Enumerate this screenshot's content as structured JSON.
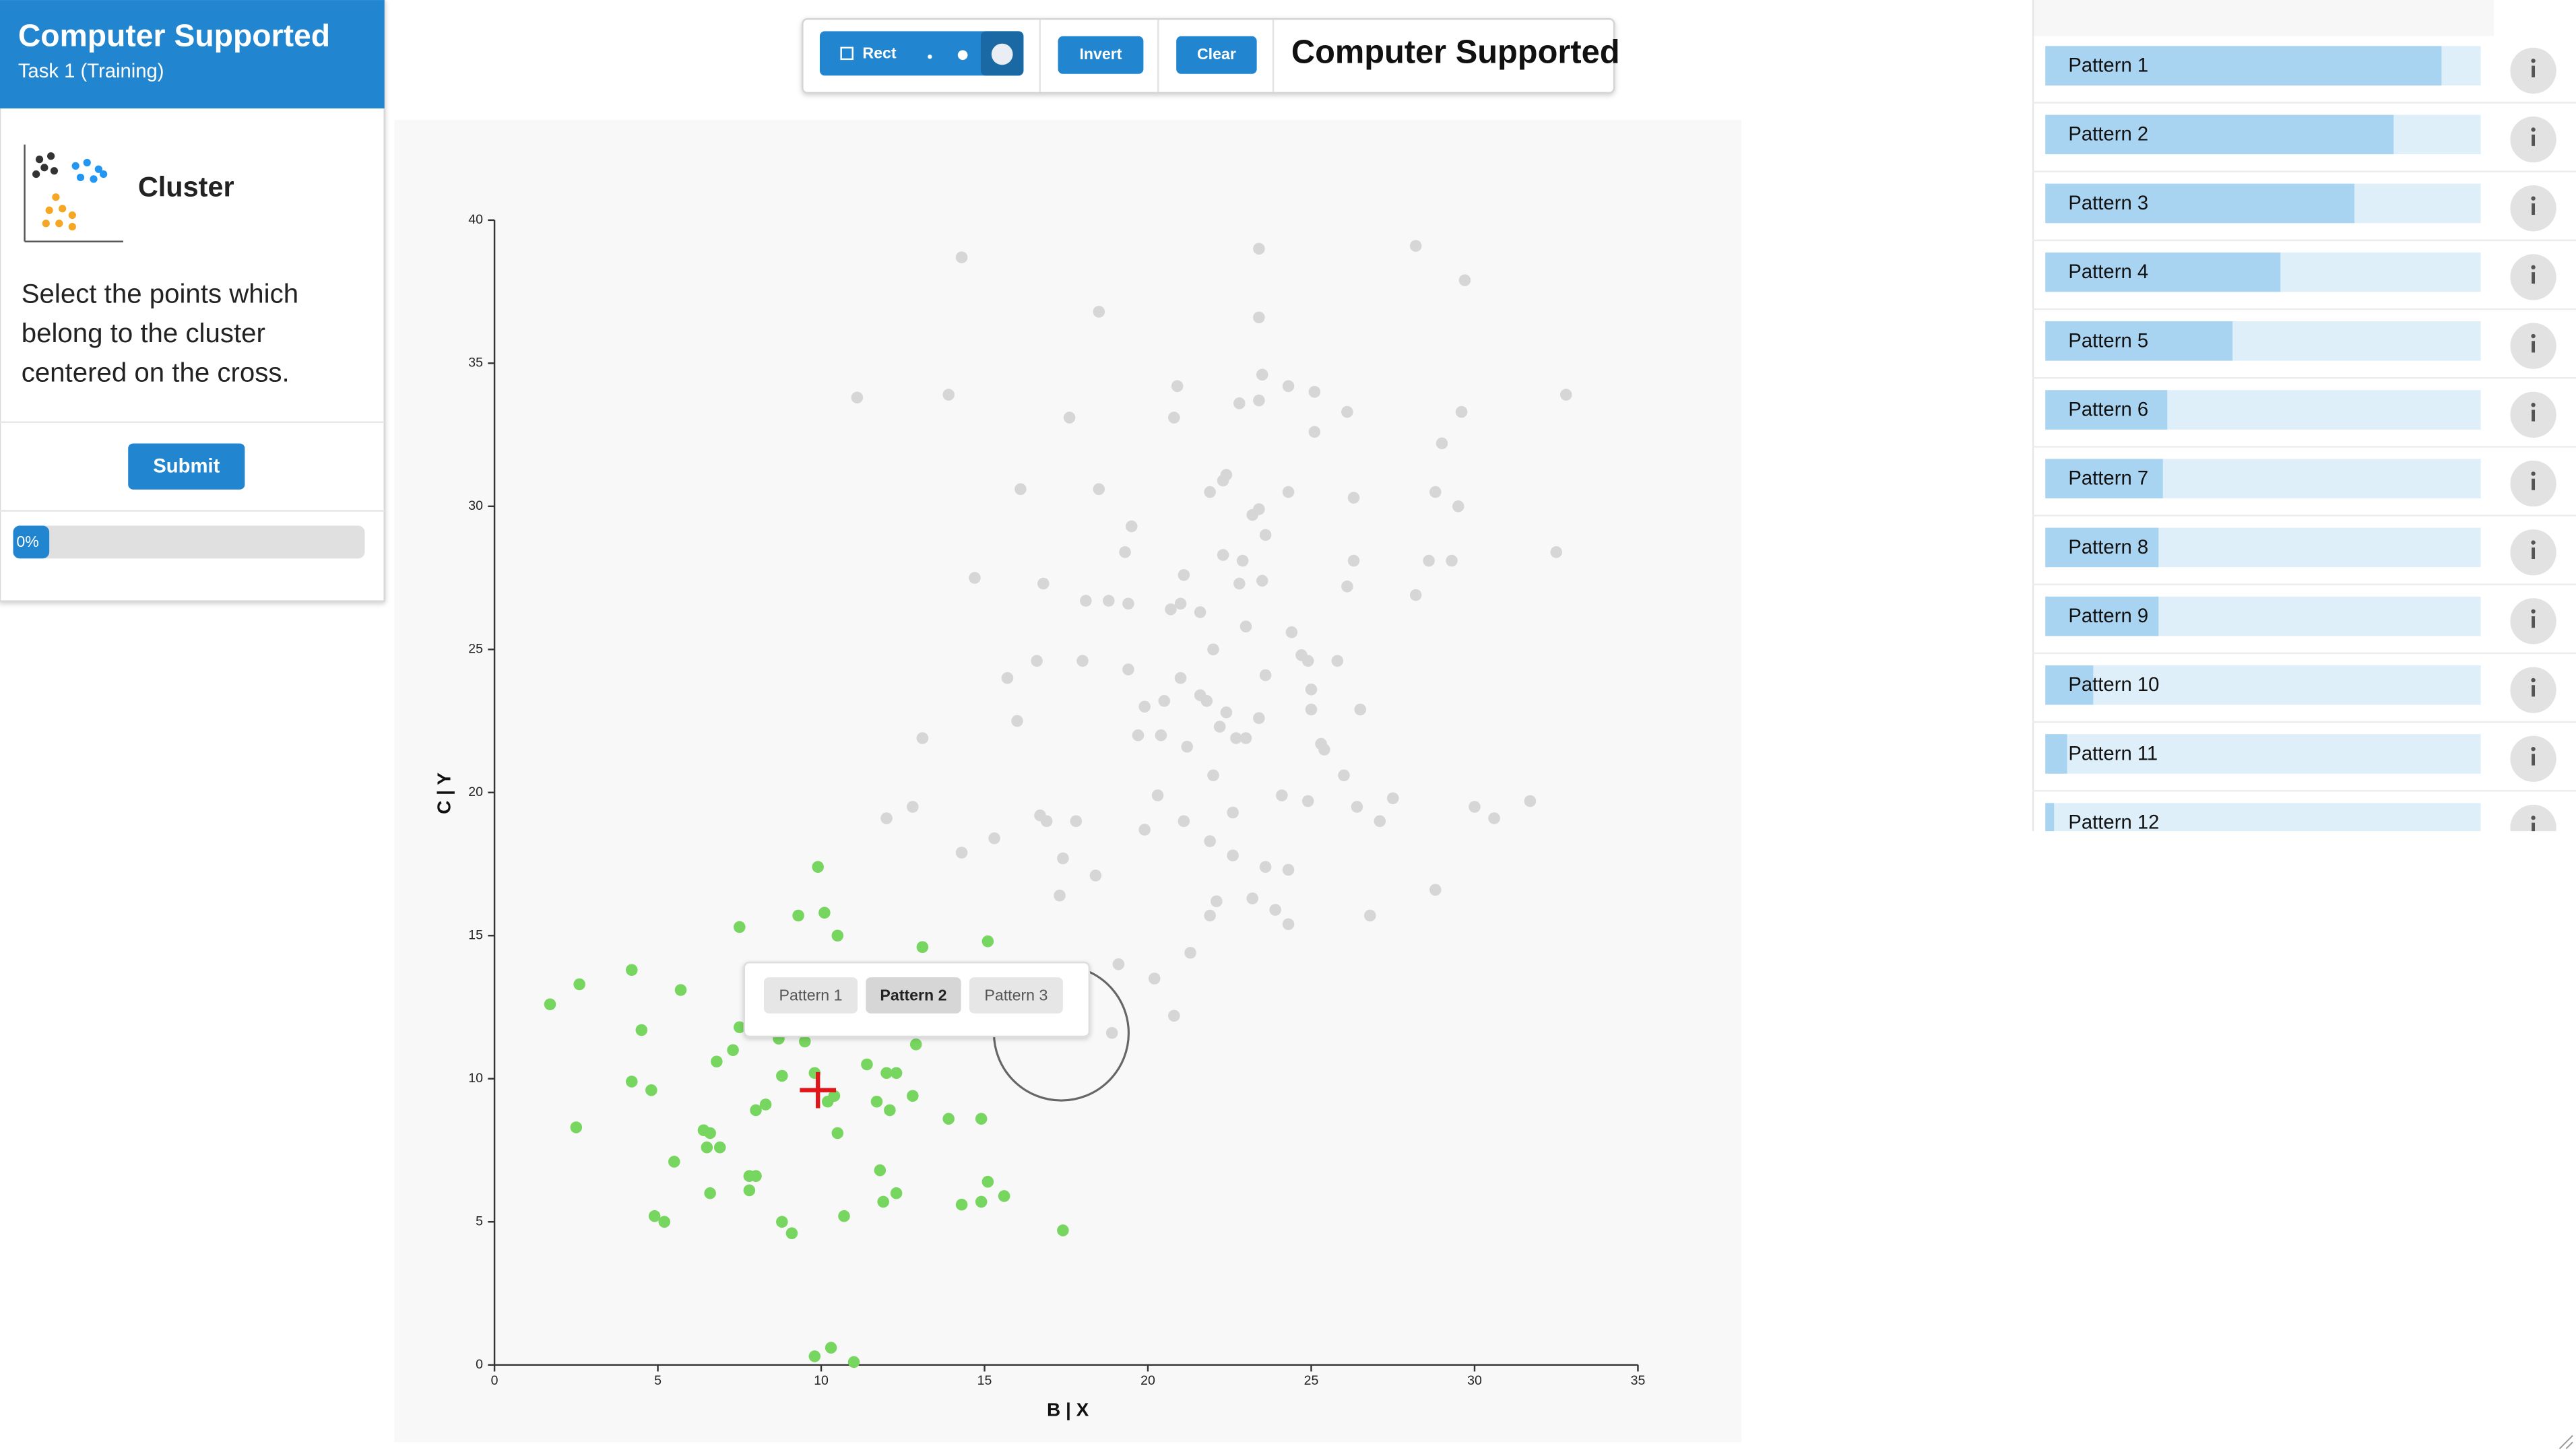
{
  "sidebar": {
    "title": "Computer Supported",
    "subtitle": "Task 1 (Training)",
    "task_name": "Cluster",
    "instructions": [
      "Select the points which",
      "belong to the cluster",
      "centered on the cross."
    ],
    "submit": "Submit",
    "progress": {
      "value": 0,
      "label": "0%"
    }
  },
  "toolbar": {
    "brush": "Rect",
    "invert": "Invert",
    "clear": "Clear",
    "title": "Computer Supported"
  },
  "scatter": {
    "xlabel": "B | X",
    "ylabel": "C | Y",
    "xlim": [
      0,
      35
    ],
    "ylim": [
      0,
      40
    ],
    "xticks": [
      0,
      5,
      10,
      15,
      20,
      25,
      30,
      35
    ],
    "yticks": [
      0,
      5,
      10,
      15,
      20,
      25,
      30,
      35,
      40
    ],
    "groups": [
      {
        "color": "#d6d6d6",
        "x": [
          14.3,
          23.4,
          28.2,
          29.7,
          18.5,
          23.4,
          11.1,
          13.9,
          17.6,
          20.9,
          20.8,
          22.8,
          23.4,
          23.5,
          24.3,
          25.1,
          26.1,
          29.6,
          32.8,
          25.1,
          29.0,
          16.1,
          18.5,
          21.9,
          22.3,
          22.4,
          24.3,
          26.3,
          28.8,
          29.5,
          19.5,
          23.2,
          23.4,
          23.6,
          19.3,
          22.3,
          22.9,
          26.3,
          28.6,
          29.3,
          32.5,
          14.7,
          16.8,
          21.1,
          22.8,
          23.5,
          26.1,
          28.2,
          18.1,
          18.8,
          19.4,
          20.7,
          21.0,
          21.6,
          23.0,
          24.4,
          16.6,
          18.0,
          22.0,
          24.7,
          24.9,
          25.8,
          15.7,
          19.4,
          21.0,
          23.6,
          19.9,
          20.5,
          21.6,
          21.8,
          25.0,
          25.0,
          26.5,
          16.0,
          22.4,
          23.4,
          22.2,
          19.7,
          20.4,
          21.2,
          22.7,
          23.0,
          13.1,
          25.3,
          25.4,
          26.0,
          22.0,
          12.0,
          12.8,
          16.7,
          16.9,
          17.8,
          19.9,
          20.3,
          21.1,
          22.6,
          24.1,
          24.9,
          26.4,
          27.1,
          27.5,
          30.0,
          30.6,
          31.7,
          14.3,
          15.3,
          17.4,
          21.9,
          22.6,
          23.6,
          24.3,
          17.3,
          22.1,
          23.2,
          21.9,
          23.9,
          26.8,
          28.8,
          21.3,
          19.1,
          20.2,
          20.8,
          18.9,
          18.4,
          24.3
        ],
        "y": [
          38.7,
          39.0,
          39.1,
          37.9,
          36.8,
          36.6,
          33.8,
          33.9,
          33.1,
          34.2,
          33.1,
          33.6,
          33.7,
          34.6,
          34.2,
          34.0,
          33.3,
          33.3,
          33.9,
          32.6,
          32.2,
          30.6,
          30.6,
          30.5,
          30.9,
          31.1,
          30.5,
          30.3,
          30.5,
          30.0,
          29.3,
          29.7,
          29.9,
          29.0,
          28.4,
          28.3,
          28.1,
          28.1,
          28.1,
          28.1,
          28.4,
          27.5,
          27.3,
          27.6,
          27.3,
          27.4,
          27.2,
          26.9,
          26.7,
          26.7,
          26.6,
          26.4,
          26.6,
          26.3,
          25.8,
          25.6,
          24.6,
          24.6,
          25.0,
          24.8,
          24.6,
          24.6,
          24.0,
          24.3,
          24.0,
          24.1,
          23.0,
          23.2,
          23.4,
          23.2,
          23.6,
          22.9,
          22.9,
          22.5,
          22.8,
          22.6,
          22.3,
          22.0,
          22.0,
          21.6,
          21.9,
          21.9,
          21.9,
          21.7,
          21.5,
          20.6,
          20.6,
          19.1,
          19.5,
          19.2,
          19.0,
          19.0,
          18.7,
          19.9,
          19.0,
          19.3,
          19.9,
          19.7,
          19.5,
          19.0,
          19.8,
          19.5,
          19.1,
          19.7,
          17.9,
          18.4,
          17.7,
          18.3,
          17.8,
          17.4,
          17.3,
          16.4,
          16.2,
          16.3,
          15.7,
          15.9,
          15.7,
          16.6,
          14.4,
          14.0,
          13.5,
          12.2,
          11.6,
          17.1,
          15.4
        ]
      },
      {
        "color": "#77d65f",
        "x": [
          1.7,
          2.6,
          2.5,
          4.2,
          4.5,
          4.2,
          4.8,
          5.7,
          5.5,
          4.9,
          5.2,
          6.8,
          7.3,
          7.5,
          7.5,
          6.4,
          6.6,
          6.5,
          6.9,
          6.6,
          7.8,
          8.0,
          7.8,
          8.0,
          8.3,
          8.7,
          8.8,
          8.8,
          9.1,
          9.3,
          9.5,
          9.9,
          10.1,
          10.5,
          9.8,
          10.2,
          10.4,
          10.5,
          10.7,
          11.4,
          11.7,
          12.0,
          12.3,
          12.1,
          11.8,
          11.9,
          12.3,
          12.8,
          12.9,
          13.1,
          13.9,
          14.9,
          15.1,
          14.3,
          14.9,
          15.1,
          15.6,
          17.4,
          9.8,
          10.3,
          11.0
        ],
        "y": [
          12.6,
          13.3,
          8.3,
          13.8,
          11.7,
          9.9,
          9.6,
          13.1,
          7.1,
          5.2,
          5.0,
          10.6,
          11.0,
          15.3,
          11.8,
          8.2,
          8.1,
          7.6,
          7.6,
          6.0,
          6.6,
          6.6,
          6.1,
          8.9,
          9.1,
          11.4,
          10.1,
          5.0,
          4.6,
          15.7,
          11.3,
          17.4,
          15.8,
          15.0,
          10.2,
          9.2,
          9.4,
          8.1,
          5.2,
          10.5,
          9.2,
          10.2,
          10.2,
          8.9,
          6.8,
          5.7,
          6.0,
          9.4,
          11.2,
          14.6,
          8.6,
          8.6,
          14.8,
          5.6,
          5.7,
          6.4,
          5.9,
          4.7,
          0.3,
          0.6,
          0.1
        ]
      }
    ],
    "cross": {
      "x": 9.9,
      "y": 9.6,
      "color": "#e0161b"
    }
  },
  "popup": [
    "Pattern 1",
    "Pattern 2",
    "Pattern 3"
  ],
  "patterns": {
    "names": [
      "Pattern 1",
      "Pattern 2",
      "Pattern 3",
      "Pattern 4",
      "Pattern 5",
      "Pattern 6",
      "Pattern 7",
      "Pattern 8",
      "Pattern 9",
      "Pattern 10",
      "Pattern 11",
      "Pattern 12"
    ],
    "scores": [
      91,
      80,
      71,
      54,
      43,
      28,
      27,
      26,
      26,
      11,
      5,
      2
    ]
  }
}
